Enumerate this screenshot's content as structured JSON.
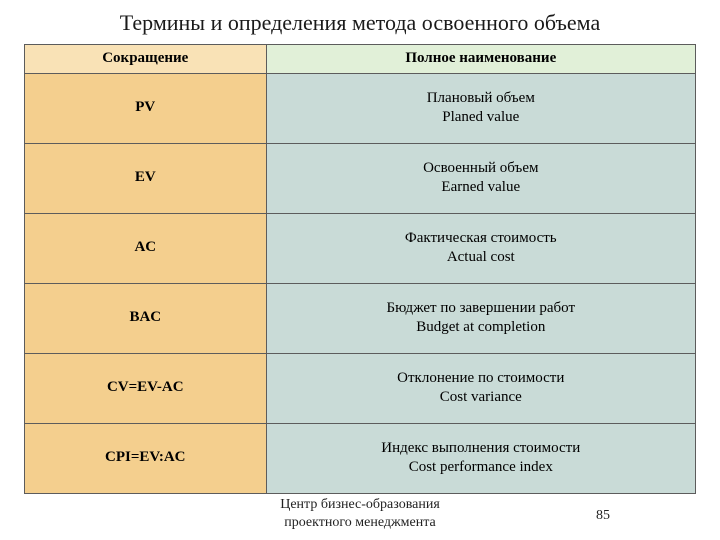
{
  "title": "Термины и определения метода освоенного объема",
  "headers": {
    "abbr": "Сокращение",
    "full": "Полное наименование"
  },
  "rows": [
    {
      "abbr": "PV",
      "line1": "Плановый объем",
      "line2": "Planed value"
    },
    {
      "abbr": "EV",
      "line1": "Освоенный объем",
      "line2": "Earned value"
    },
    {
      "abbr": "AC",
      "line1": "Фактическая стоимость",
      "line2": "Actual cost"
    },
    {
      "abbr": "BAC",
      "line1": "Бюджет по завершении работ",
      "line2": "Budget at completion"
    },
    {
      "abbr": "CV=EV-AC",
      "line1": "Отклонение по стоимости",
      "line2": "Cost variance"
    },
    {
      "abbr": "CPI=EV:AC",
      "line1": "Индекс выполнения стоимости",
      "line2": "Cost performance index"
    }
  ],
  "footer": {
    "line1": "Центр бизнес-образования",
    "line2": "проектного менеджмента"
  },
  "page_number": "85",
  "colors": {
    "header_left_bg": "#f9e2b6",
    "header_right_bg": "#e1f0d8",
    "abbr_col_bg": "#f4cf8e",
    "full_col_bg": "#c9dbd7",
    "border": "#5c5c5c",
    "text": "#1a1a1a"
  }
}
